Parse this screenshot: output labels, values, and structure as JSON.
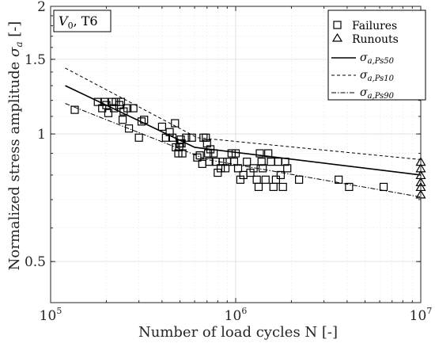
{
  "chart_data": {
    "type": "scatter",
    "title": "V_0, T6",
    "title_parts": {
      "main": "V",
      "sub": "0",
      "rest": ", T6"
    },
    "xlabel": "Number of load cycles N [-]",
    "ylabel_text": "Normalized stress amplitude ",
    "ylabel_sym": "σ",
    "ylabel_sub": "a",
    "ylabel_unit": " [-]",
    "x_scale": "log",
    "y_scale": "log",
    "xlim": [
      100000,
      10000000
    ],
    "ylim": [
      0.4,
      2.0
    ],
    "x_ticks": [
      {
        "value": 100000,
        "base": "10",
        "exp": "5"
      },
      {
        "value": 1000000,
        "base": "10",
        "exp": "6"
      },
      {
        "value": 10000000,
        "base": "10",
        "exp": "7"
      }
    ],
    "y_ticks": [
      {
        "value": 0.5,
        "label": "0.5"
      },
      {
        "value": 1.0,
        "label": "1"
      },
      {
        "value": 1.5,
        "label": "1.5"
      },
      {
        "value": 2.0,
        "label": "2"
      }
    ],
    "grid": true,
    "legend_position": "top-right",
    "series": [
      {
        "name": "Failures",
        "kind": "scatter",
        "marker": "square",
        "points": [
          [
            135000,
            1.14
          ],
          [
            180000,
            1.19
          ],
          [
            190000,
            1.15
          ],
          [
            195000,
            1.19
          ],
          [
            200000,
            1.17
          ],
          [
            205000,
            1.12
          ],
          [
            215000,
            1.19
          ],
          [
            220000,
            1.15
          ],
          [
            225000,
            1.19
          ],
          [
            235000,
            1.17
          ],
          [
            240000,
            1.19
          ],
          [
            245000,
            1.08
          ],
          [
            248000,
            1.13
          ],
          [
            260000,
            1.15
          ],
          [
            265000,
            1.03
          ],
          [
            280000,
            1.15
          ],
          [
            300000,
            0.98
          ],
          [
            310000,
            1.07
          ],
          [
            320000,
            1.08
          ],
          [
            400000,
            1.04
          ],
          [
            420000,
            0.98
          ],
          [
            440000,
            1.01
          ],
          [
            455000,
            0.98
          ],
          [
            470000,
            1.06
          ],
          [
            475000,
            0.93
          ],
          [
            490000,
            0.9
          ],
          [
            495000,
            0.93
          ],
          [
            500000,
            0.95
          ],
          [
            505000,
            0.97
          ],
          [
            510000,
            0.95
          ],
          [
            515000,
            0.9
          ],
          [
            540000,
            0.98
          ],
          [
            580000,
            0.98
          ],
          [
            620000,
            0.88
          ],
          [
            640000,
            0.89
          ],
          [
            660000,
            0.85
          ],
          [
            670000,
            0.98
          ],
          [
            690000,
            0.98
          ],
          [
            700000,
            0.95
          ],
          [
            710000,
            0.9
          ],
          [
            720000,
            0.86
          ],
          [
            730000,
            0.92
          ],
          [
            760000,
            0.9
          ],
          [
            780000,
            0.86
          ],
          [
            800000,
            0.81
          ],
          [
            830000,
            0.83
          ],
          [
            850000,
            0.86
          ],
          [
            880000,
            0.83
          ],
          [
            900000,
            0.86
          ],
          [
            950000,
            0.9
          ],
          [
            980000,
            0.86
          ],
          [
            1000000,
            0.9
          ],
          [
            1030000,
            0.83
          ],
          [
            1060000,
            0.78
          ],
          [
            1100000,
            0.8
          ],
          [
            1150000,
            0.86
          ],
          [
            1200000,
            0.81
          ],
          [
            1250000,
            0.83
          ],
          [
            1300000,
            0.78
          ],
          [
            1330000,
            0.75
          ],
          [
            1350000,
            0.9
          ],
          [
            1380000,
            0.86
          ],
          [
            1400000,
            0.83
          ],
          [
            1450000,
            0.78
          ],
          [
            1500000,
            0.9
          ],
          [
            1550000,
            0.86
          ],
          [
            1600000,
            0.75
          ],
          [
            1650000,
            0.78
          ],
          [
            1700000,
            0.86
          ],
          [
            1750000,
            0.8
          ],
          [
            1800000,
            0.75
          ],
          [
            1850000,
            0.86
          ],
          [
            1900000,
            0.83
          ],
          [
            2200000,
            0.78
          ],
          [
            3600000,
            0.78
          ],
          [
            4100000,
            0.75
          ],
          [
            6300000,
            0.75
          ]
        ]
      },
      {
        "name": "Runouts",
        "kind": "scatter",
        "marker": "triangle",
        "points": [
          [
            10000000,
            0.86
          ],
          [
            10000000,
            0.83
          ],
          [
            10000000,
            0.8
          ],
          [
            10000000,
            0.77
          ],
          [
            10000000,
            0.75
          ],
          [
            10000000,
            0.72
          ]
        ]
      },
      {
        "name": "σa,Ps50",
        "legend_sym": "σ",
        "legend_sub": "a,Ps50",
        "kind": "line",
        "style": "solid",
        "points": [
          [
            120000,
            1.3
          ],
          [
            600000,
            0.93
          ],
          [
            10000000,
            0.8
          ]
        ]
      },
      {
        "name": "σa,Ps10",
        "legend_sym": "σ",
        "legend_sub": "a,Ps10",
        "kind": "line",
        "style": "dashed",
        "points": [
          [
            120000,
            1.43
          ],
          [
            620000,
            0.98
          ],
          [
            10000000,
            0.87
          ]
        ]
      },
      {
        "name": "σa,Ps90",
        "legend_sym": "σ",
        "legend_sub": "a,Ps90",
        "kind": "line",
        "style": "dashdot",
        "points": [
          [
            120000,
            1.18
          ],
          [
            700000,
            0.87
          ],
          [
            10000000,
            0.71
          ]
        ]
      }
    ]
  }
}
